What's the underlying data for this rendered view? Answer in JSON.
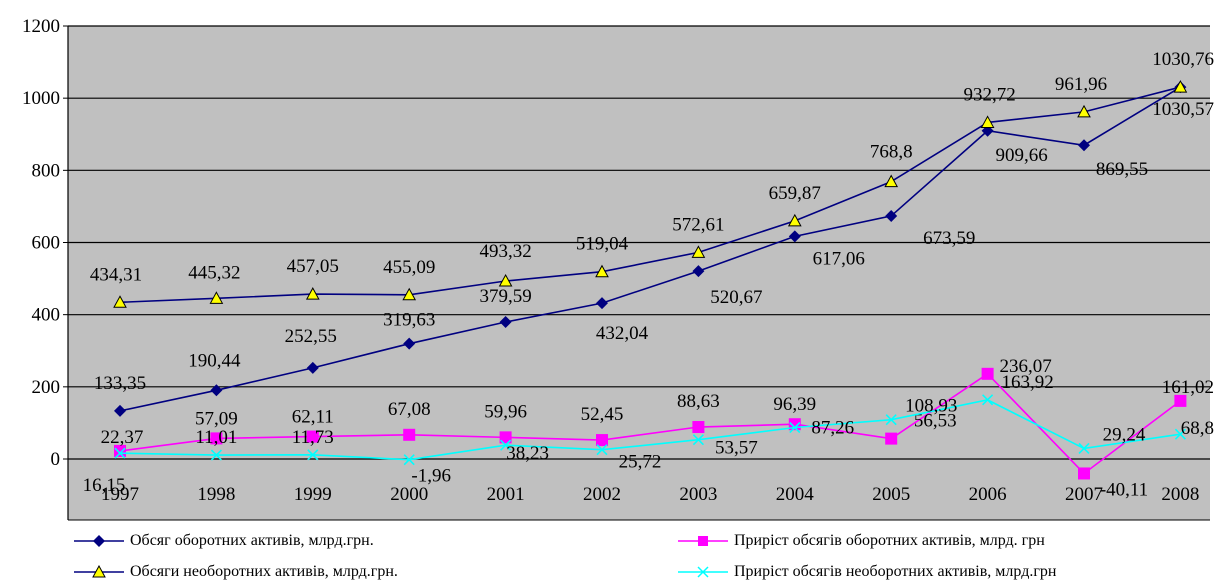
{
  "chart_data": {
    "type": "line",
    "categories": [
      "1997",
      "1998",
      "1999",
      "2000",
      "2001",
      "2002",
      "2003",
      "2004",
      "2005",
      "2006",
      "2007",
      "2008"
    ],
    "ylim": [
      0,
      1200
    ],
    "y_ticks": [
      "0",
      "200",
      "400",
      "600",
      "800",
      "1000",
      "1200"
    ],
    "grid": "horizontal",
    "background": "#c0c0c0",
    "legend_position": "bottom",
    "series": [
      {
        "name": "Обсяг оборотних  активів, млрд.грн.",
        "marker": "diamond",
        "color": "#000080",
        "values": [
          133.35,
          190.44,
          252.55,
          319.63,
          379.59,
          432.04,
          520.67,
          617.06,
          673.59,
          909.66,
          869.55,
          1030.57
        ],
        "labels": [
          "133,35",
          "190,44",
          "252,55",
          "319,63",
          "379,59",
          "432,04",
          "520,67",
          "617,06",
          "673,59",
          "909,66",
          "869,55",
          "1030,57"
        ]
      },
      {
        "name": "Обсяги необоротних активів, млрд.грн.",
        "marker": "triangle",
        "color": "#000080",
        "fill": "#ffff00",
        "values": [
          434.31,
          445.32,
          457.05,
          455.09,
          493.32,
          519.04,
          572.61,
          659.87,
          768.8,
          932.72,
          961.96,
          1030.76
        ],
        "labels": [
          "434,31",
          "445,32",
          "457,05",
          "455,09",
          "493,32",
          "519,04",
          "572,61",
          "659,87",
          "768,8",
          "932,72",
          "961,96",
          "1030,76"
        ]
      },
      {
        "name": "Приріст обсягів оборотних активів, млрд. грн",
        "marker": "square",
        "color": "#ff00ff",
        "values": [
          22.37,
          57.09,
          62.11,
          67.08,
          59.96,
          52.45,
          88.63,
          96.39,
          56.53,
          236.07,
          -40.11,
          161.02
        ],
        "labels": [
          "22,37",
          "57,09",
          "62,11",
          "67,08",
          "59,96",
          "52,45",
          "88,63",
          "96,39",
          "56,53",
          "236,07",
          "-40,11",
          "161,02"
        ]
      },
      {
        "name": "Приріст обсягів необоротних активів, млрд.грн",
        "marker": "x",
        "color": "#00ffff",
        "values": [
          16.15,
          11.01,
          11.73,
          -1.96,
          38.23,
          25.72,
          53.57,
          87.26,
          108.93,
          163.92,
          29.24,
          68.8
        ],
        "labels": [
          "16,15",
          "11,01",
          "11,73",
          "-1,96",
          "38,23",
          "25,72",
          "53,57",
          "87,26",
          "108,93",
          "163,92",
          "29,24",
          "68,8"
        ]
      }
    ]
  }
}
